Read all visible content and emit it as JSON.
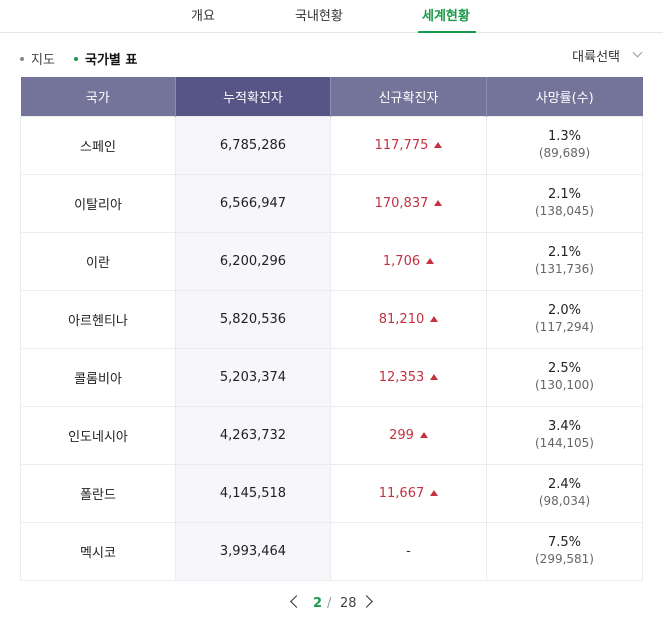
{
  "tabs": [
    "개요",
    "국내현황",
    "세계현황"
  ],
  "active_tab": "세계현황",
  "subnav": {
    "map": "지도",
    "table": "국가별 표"
  },
  "continent_select": "대륙선택",
  "table": {
    "headers": [
      "국가",
      "누적확진자",
      "신규확진자",
      "사망률(수)"
    ],
    "rows": [
      {
        "country": "스페인",
        "cumulative": "6,785,286",
        "new_cases": "117,775",
        "up": true,
        "rate": "1.3%",
        "deaths": "(89,689)"
      },
      {
        "country": "이탈리아",
        "cumulative": "6,566,947",
        "new_cases": "170,837",
        "up": true,
        "rate": "2.1%",
        "deaths": "(138,045)"
      },
      {
        "country": "이란",
        "cumulative": "6,200,296",
        "new_cases": "1,706",
        "up": true,
        "rate": "2.1%",
        "deaths": "(131,736)"
      },
      {
        "country": "아르헨티나",
        "cumulative": "5,820,536",
        "new_cases": "81,210",
        "up": true,
        "rate": "2.0%",
        "deaths": "(117,294)"
      },
      {
        "country": "콜롬비아",
        "cumulative": "5,203,374",
        "new_cases": "12,353",
        "up": true,
        "rate": "2.5%",
        "deaths": "(130,100)"
      },
      {
        "country": "인도네시아",
        "cumulative": "4,263,732",
        "new_cases": "299",
        "up": true,
        "rate": "3.4%",
        "deaths": "(144,105)"
      },
      {
        "country": "폴란드",
        "cumulative": "4,145,518",
        "new_cases": "11,667",
        "up": true,
        "rate": "2.4%",
        "deaths": "(98,034)"
      },
      {
        "country": "멕시코",
        "cumulative": "3,993,464",
        "new_cases": "-",
        "up": false,
        "rate": "7.5%",
        "deaths": "(299,581)"
      }
    ]
  },
  "pagination": {
    "current": "2",
    "separator": "/",
    "total": "28"
  },
  "colors": {
    "accent_green": "#1a9a4a",
    "header_bg": "#747399",
    "header_highlight": "#575585",
    "increase_red": "#c4323f"
  }
}
